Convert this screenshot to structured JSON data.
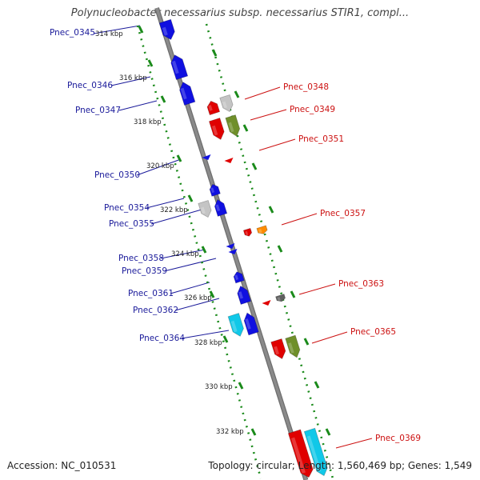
{
  "title": "Polynucleobacter necessarius subsp. necessarius STIR1, compl...",
  "footer": {
    "accession": "Accession: NC_010531",
    "topology": "Topology: circular; Length: 1,560,469 bp; Genes: 1,549"
  },
  "colors": {
    "backbone": "#8a8a8a",
    "tick": "#1a8a1a",
    "left_label": "#1a1a9a",
    "right_label": "#cc1111",
    "blue": "#1010e0",
    "red": "#e00000",
    "grey": "#c4c4c4",
    "olive": "#6f8f2a",
    "orange": "#ff8c00",
    "darkgrey": "#606060",
    "cyan": "#10c8e8"
  },
  "kbp_ticks": [
    "314 kbp",
    "316 kbp",
    "318 kbp",
    "320 kbp",
    "322 kbp",
    "324 kbp",
    "326 kbp",
    "328 kbp",
    "330 kbp",
    "332 kbp"
  ],
  "left_genes": [
    "Pnec_0345",
    "Pnec_0346",
    "Pnec_0347",
    "Pnec_0350",
    "Pnec_0354",
    "Pnec_0355",
    "Pnec_0358",
    "Pnec_0359",
    "Pnec_0361",
    "Pnec_0362",
    "Pnec_0364"
  ],
  "right_genes": [
    "Pnec_0348",
    "Pnec_0349",
    "Pnec_0351",
    "Pnec_0357",
    "Pnec_0363",
    "Pnec_0365",
    "Pnec_0369"
  ]
}
